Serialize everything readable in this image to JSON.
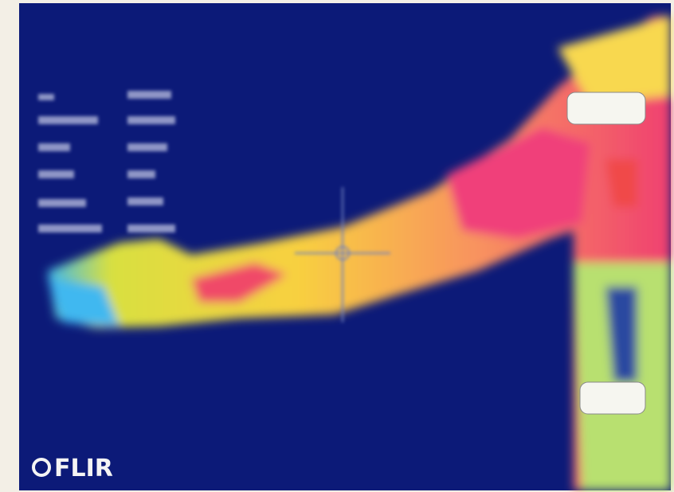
{
  "logo": {
    "text": "FLIR"
  }
}
